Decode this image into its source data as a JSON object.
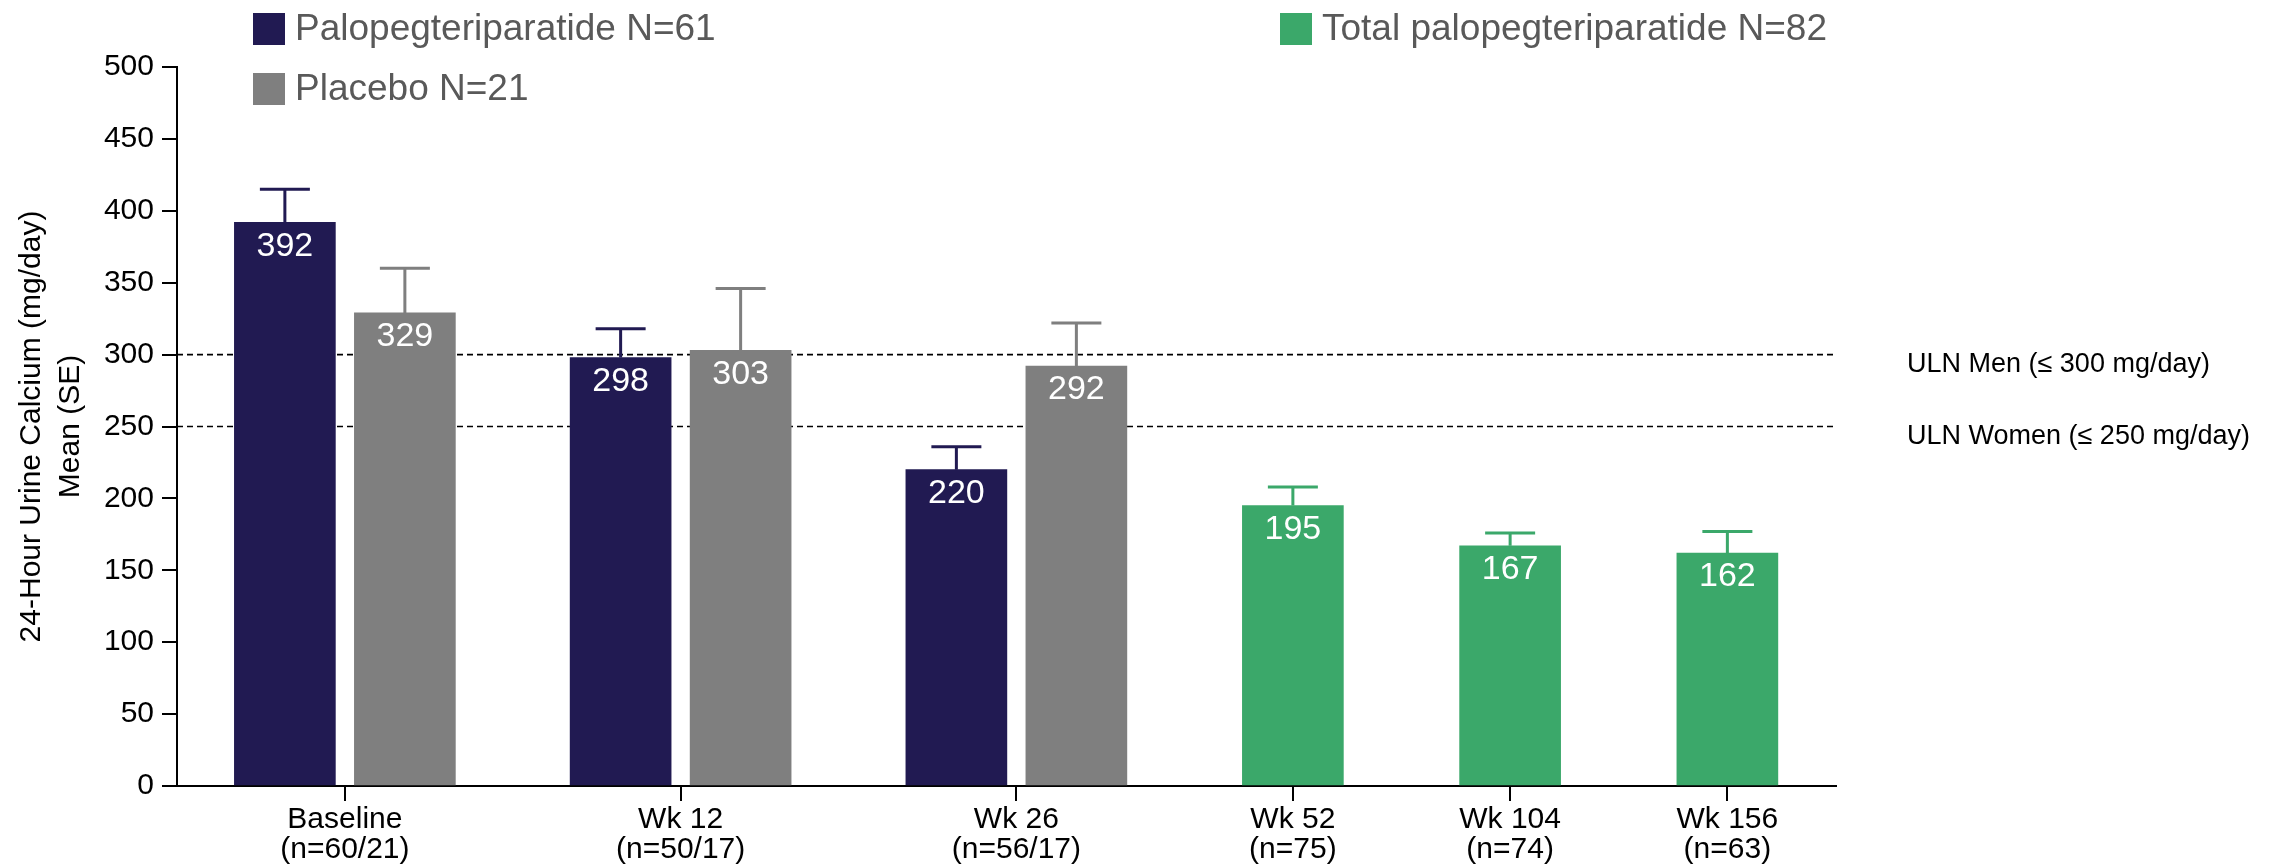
{
  "chart_data": {
    "type": "bar",
    "categories": [
      "Baseline\n(n=60/21)",
      "Wk 12\n(n=50/17)",
      "Wk 26\n(n=56/17)",
      "Wk 52\n(n=75)",
      "Wk 104\n(n=74)",
      "Wk 156\n(n=63)"
    ],
    "series": [
      {
        "name": "Palopegteriparatide N=61",
        "color": "#211a52",
        "values": [
          392,
          298,
          220,
          null,
          null,
          null
        ],
        "errors": [
          [
            392,
            415
          ],
          [
            298,
            318
          ],
          [
            220,
            236
          ],
          null,
          null,
          null
        ]
      },
      {
        "name": "Placebo N=21",
        "color": "#7f7f7f",
        "values": [
          329,
          303,
          292,
          null,
          null,
          null
        ],
        "errors": [
          [
            329,
            360
          ],
          [
            303,
            346
          ],
          [
            292,
            322
          ],
          null,
          null,
          null
        ]
      },
      {
        "name": "Total palopegteriparatide N=82",
        "color": "#3ba86a",
        "values": [
          null,
          null,
          null,
          195,
          167,
          162
        ],
        "errors": [
          null,
          null,
          null,
          [
            195,
            208
          ],
          [
            167,
            176
          ],
          [
            162,
            177
          ]
        ]
      }
    ],
    "ylabel": "24-Hour Urine Calcium (mg/day)\nMean (SE)",
    "ylim": [
      0,
      500
    ],
    "yticks": [
      0,
      50,
      100,
      150,
      200,
      250,
      300,
      350,
      400,
      450,
      500
    ],
    "ref_lines": [
      {
        "axis": "y",
        "value": 300,
        "label": "ULN Men (≤ 300 mg/day)",
        "line_style": "dashed",
        "color": "#000000"
      },
      {
        "axis": "y",
        "value": 250,
        "label": "ULN Women (≤ 250 mg/day)",
        "line_style": "dashed",
        "color": "#000000"
      }
    ],
    "data_labels": true,
    "legend": "top"
  }
}
